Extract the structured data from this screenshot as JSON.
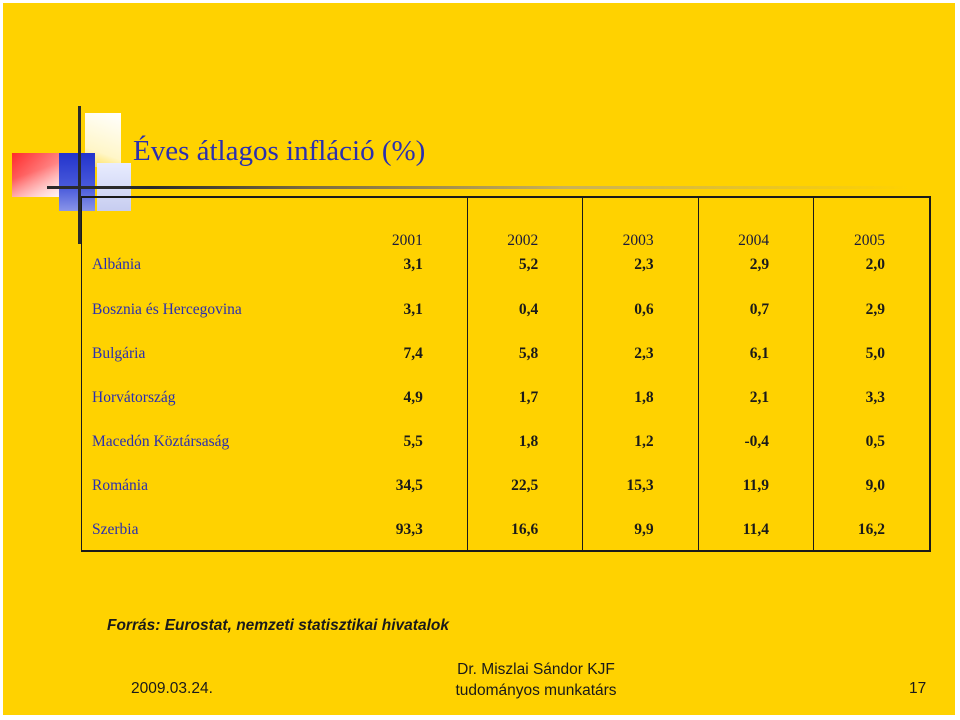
{
  "slide": {
    "title": "Éves átlagos infláció (%)",
    "source": "Forrás: Eurostat, nemzeti statisztikai hivatalok",
    "footer": {
      "date": "2009.03.24.",
      "author_line1": "Dr. Miszlai Sándor KJF",
      "author_line2": "tudományos munkatárs",
      "page_number": "17"
    }
  },
  "chart_data": {
    "type": "table",
    "title": "Éves átlagos infláció (%)",
    "columns": [
      "2001",
      "2002",
      "2003",
      "2004",
      "2005"
    ],
    "rows": [
      {
        "country": "Albánia",
        "values": [
          "3,1",
          "5,2",
          "2,3",
          "2,9",
          "2,0"
        ]
      },
      {
        "country": "Bosznia és Hercegovina",
        "values": [
          "3,1",
          "0,4",
          "0,6",
          "0,7",
          "2,9"
        ]
      },
      {
        "country": "Bulgária",
        "values": [
          "7,4",
          "5,8",
          "2,3",
          "6,1",
          "5,0"
        ]
      },
      {
        "country": "Horvátország",
        "values": [
          "4,9",
          "1,7",
          "1,8",
          "2,1",
          "3,3"
        ]
      },
      {
        "country": "Macedón Köztársaság",
        "values": [
          "5,5",
          "1,8",
          "1,2",
          "-0,4",
          "0,5"
        ]
      },
      {
        "country": "Románia",
        "values": [
          "34,5",
          "22,5",
          "15,3",
          "11,9",
          "9,0"
        ]
      },
      {
        "country": "Szerbia",
        "values": [
          "93,3",
          "16,6",
          "9,9",
          "11,4",
          "16,2"
        ]
      }
    ]
  },
  "colors": {
    "background": "#ffd200",
    "title": "#2a2fb0",
    "country_labels": "#2a2fb0",
    "text": "#1a1a1a"
  }
}
